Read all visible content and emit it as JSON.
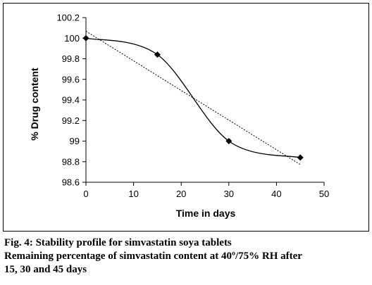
{
  "chart_data": {
    "type": "line",
    "xlabel": "Time in days",
    "ylabel": "% Drug content",
    "xlim": [
      0,
      50
    ],
    "ylim": [
      98.6,
      100.2
    ],
    "xticks": [
      "0",
      "10",
      "20",
      "30",
      "40",
      "50"
    ],
    "yticks": [
      "98.6",
      "98.8",
      "99",
      "99.2",
      "99.4",
      "99.6",
      "99.8",
      "100",
      "100.2"
    ],
    "grid": false,
    "series": [
      {
        "x": [
          0,
          15,
          30,
          45
        ],
        "y": [
          100,
          99.84,
          99,
          98.84
        ],
        "style": "smoothed solid line with diamond markers",
        "color": "#000000"
      }
    ],
    "trendline": {
      "style": "dotted linear fit",
      "color": "#000000"
    }
  },
  "caption": {
    "line1": "Fig. 4: Stability profile for simvastatin soya tablets",
    "line2": "Remaining percentage of simvastatin content at 40º/75% RH after",
    "line3": "15, 30 and 45 days"
  }
}
